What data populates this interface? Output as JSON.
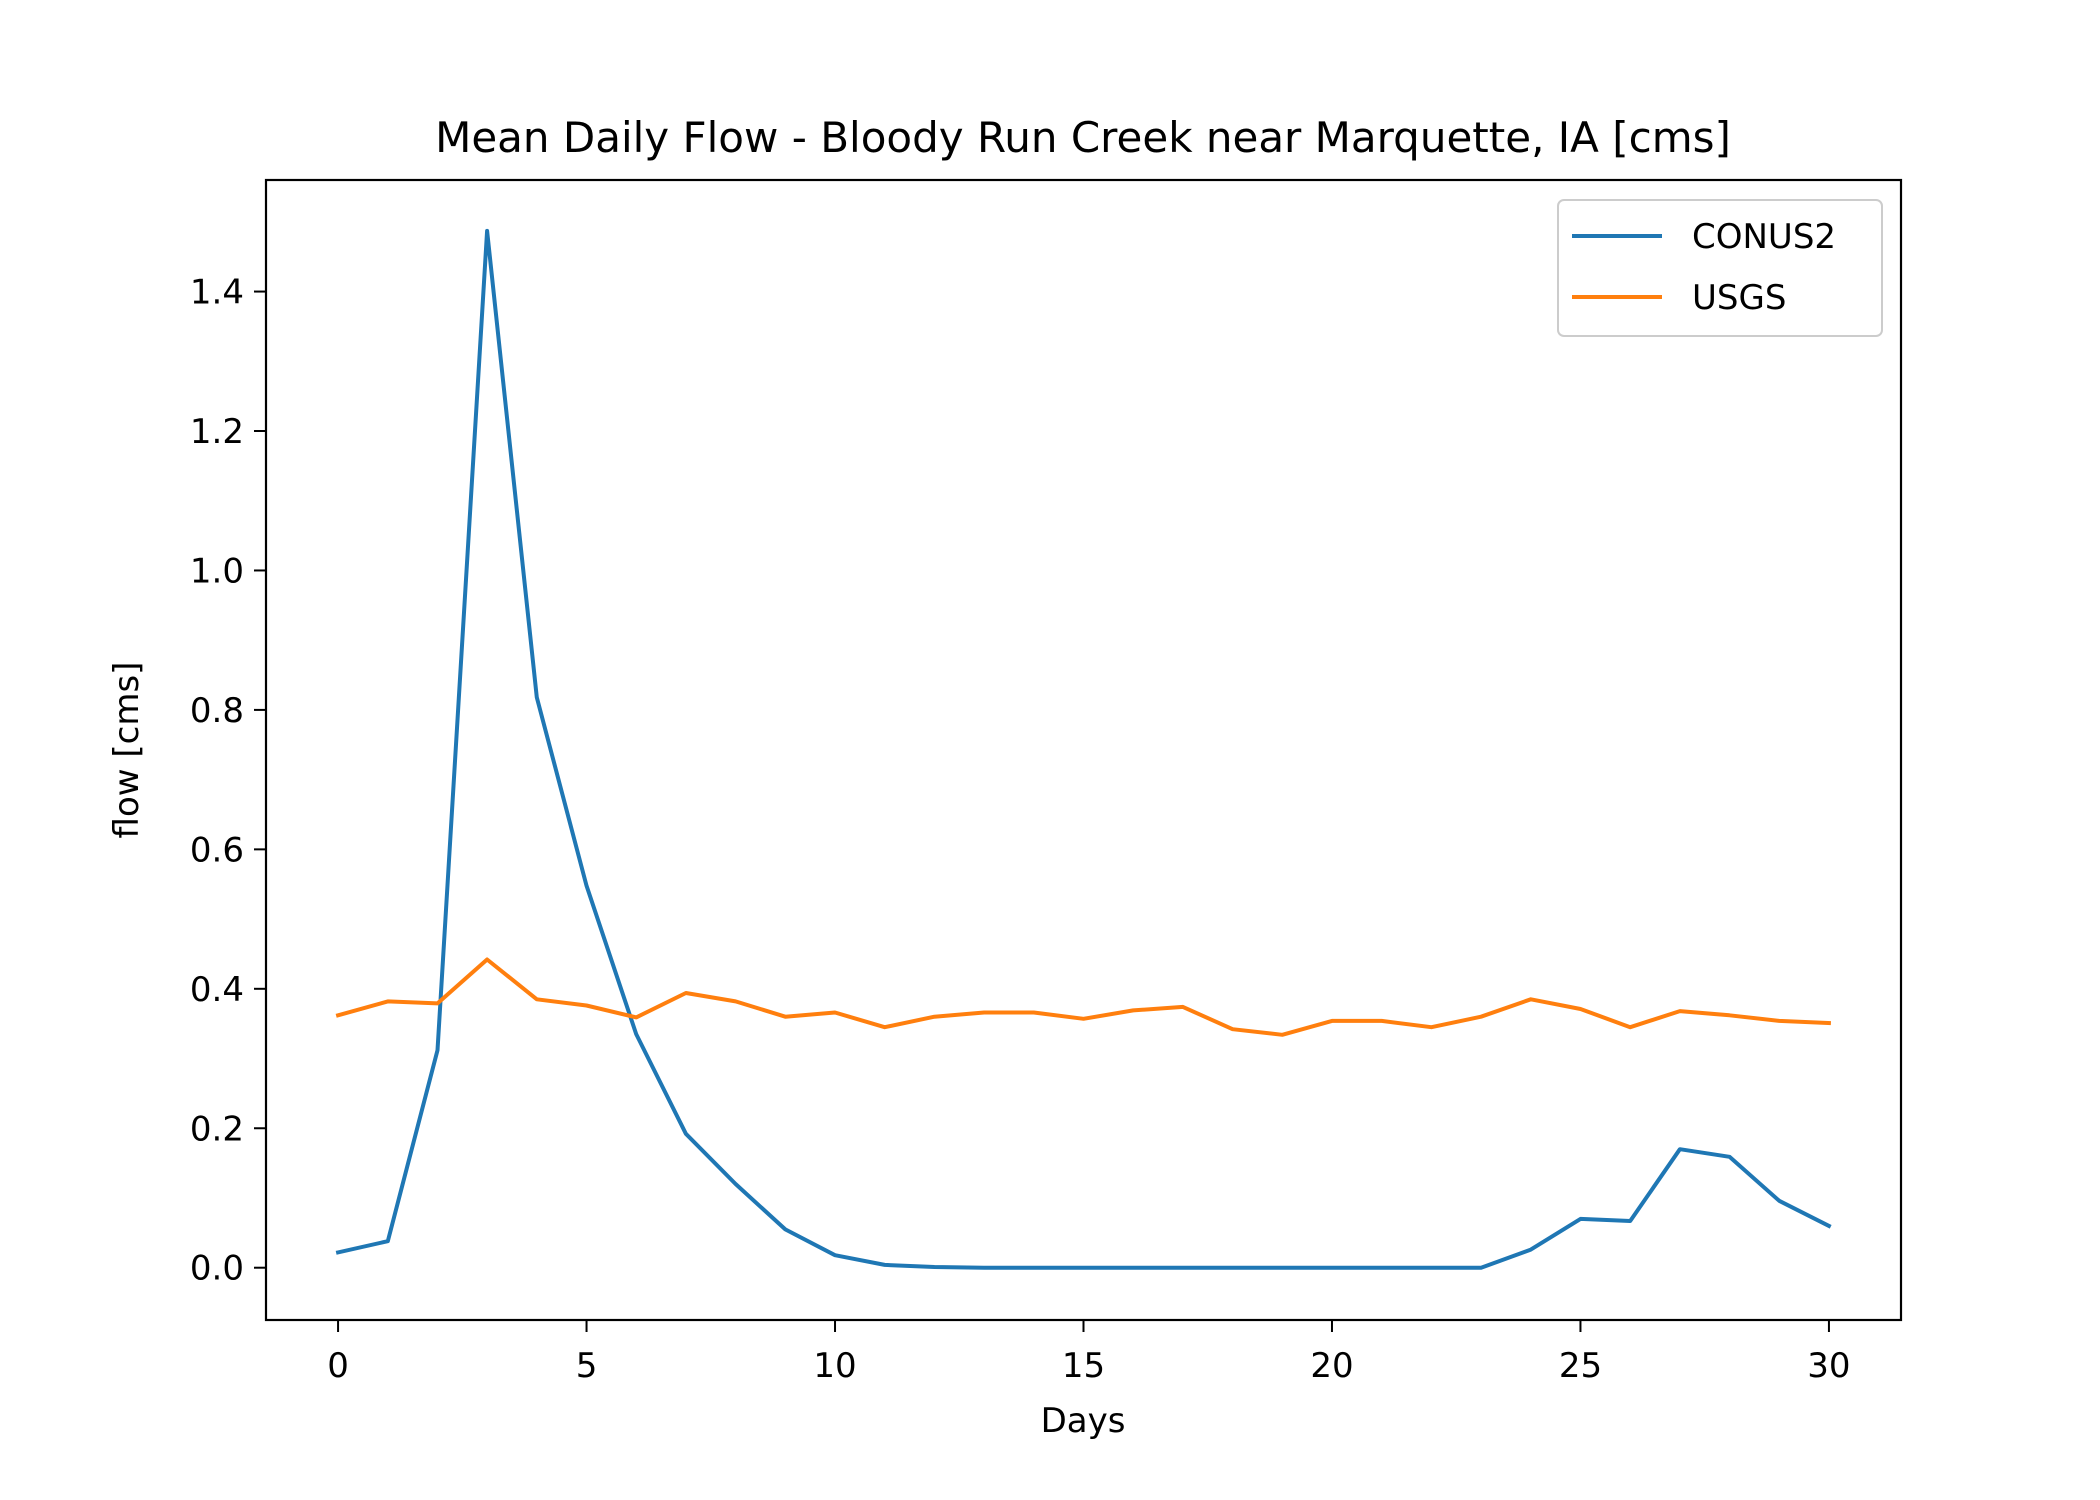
{
  "chart_data": {
    "type": "line",
    "title": "Mean Daily Flow - Bloody Run Creek near Marquette, IA [cms]",
    "xlabel": "Days",
    "ylabel": "flow [cms]",
    "xlim": [
      -1.45,
      31.45
    ],
    "ylim": [
      -0.075,
      1.56
    ],
    "xticks": [
      0,
      5,
      10,
      15,
      20,
      25,
      30
    ],
    "yticks": [
      0.0,
      0.2,
      0.4,
      0.6,
      0.8,
      1.0,
      1.2,
      1.4
    ],
    "grid": false,
    "legend_position": "upper right",
    "x": [
      0,
      1,
      2,
      3,
      4,
      5,
      6,
      7,
      8,
      9,
      10,
      11,
      12,
      13,
      14,
      15,
      16,
      17,
      18,
      19,
      20,
      21,
      22,
      23,
      24,
      25,
      26,
      27,
      28,
      29,
      30
    ],
    "series": [
      {
        "name": "CONUS2",
        "color": "#1f77b4",
        "values": [
          0.022,
          0.038,
          0.312,
          1.487,
          0.818,
          0.548,
          0.335,
          0.192,
          0.12,
          0.055,
          0.018,
          0.004,
          0.001,
          0.0,
          0.0,
          0.0,
          0.0,
          0.0,
          0.0,
          0.0,
          0.0,
          0.0,
          0.0,
          0.0,
          0.026,
          0.07,
          0.067,
          0.17,
          0.159,
          0.096,
          0.06
        ]
      },
      {
        "name": "USGS",
        "color": "#ff7f0e",
        "values": [
          0.362,
          0.382,
          0.379,
          0.442,
          0.385,
          0.376,
          0.359,
          0.394,
          0.382,
          0.36,
          0.366,
          0.345,
          0.36,
          0.366,
          0.366,
          0.357,
          0.369,
          0.374,
          0.342,
          0.334,
          0.354,
          0.354,
          0.345,
          0.36,
          0.385,
          0.371,
          0.345,
          0.368,
          0.362,
          0.354,
          0.351
        ]
      }
    ]
  }
}
